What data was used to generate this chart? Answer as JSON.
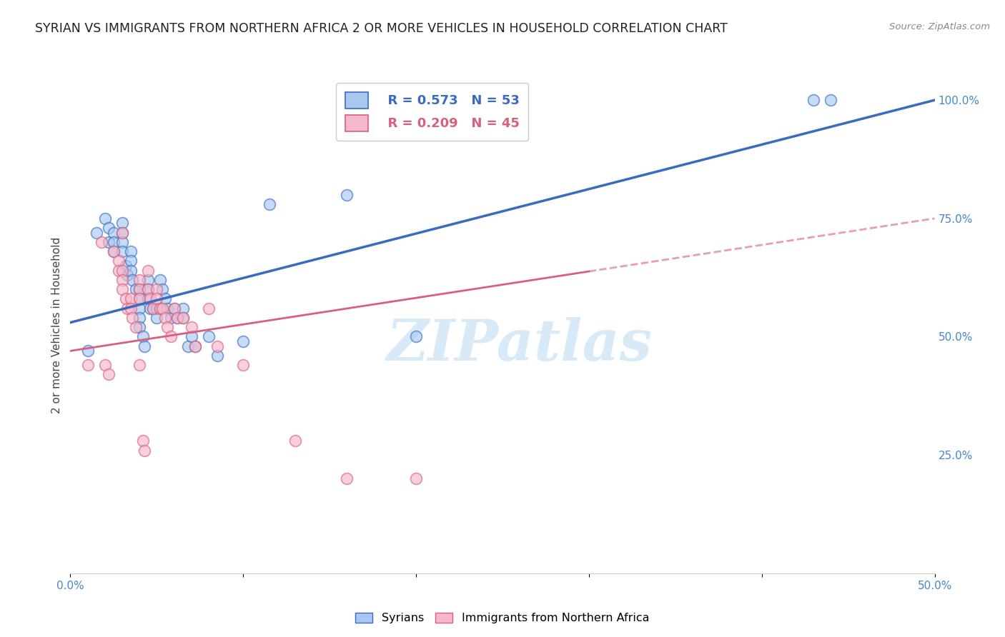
{
  "title": "SYRIAN VS IMMIGRANTS FROM NORTHERN AFRICA 2 OR MORE VEHICLES IN HOUSEHOLD CORRELATION CHART",
  "source": "Source: ZipAtlas.com",
  "ylabel": "2 or more Vehicles in Household",
  "xmin": 0.0,
  "xmax": 0.5,
  "ymin": 0.0,
  "ymax": 1.05,
  "xticks": [
    0.0,
    0.1,
    0.2,
    0.3,
    0.4,
    0.5
  ],
  "xticklabels": [
    "0.0%",
    "",
    "",
    "",
    "",
    "50.0%"
  ],
  "yticks_right": [
    0.25,
    0.5,
    0.75,
    1.0
  ],
  "yticklabels_right": [
    "25.0%",
    "50.0%",
    "75.0%",
    "100.0%"
  ],
  "blue_R": 0.573,
  "blue_N": 53,
  "pink_R": 0.209,
  "pink_N": 45,
  "blue_color": "#a8c8f0",
  "pink_color": "#f5b8cc",
  "blue_line_color": "#3a6bbf",
  "pink_line_color": "#d95f7a",
  "tick_color": "#4488cc",
  "watermark_text": "ZIPatlas",
  "watermark_color": "#d8eaf8",
  "blue_points": [
    [
      0.01,
      0.47
    ],
    [
      0.015,
      0.72
    ],
    [
      0.02,
      0.75
    ],
    [
      0.022,
      0.73
    ],
    [
      0.022,
      0.7
    ],
    [
      0.025,
      0.72
    ],
    [
      0.025,
      0.7
    ],
    [
      0.025,
      0.68
    ],
    [
      0.03,
      0.74
    ],
    [
      0.03,
      0.72
    ],
    [
      0.03,
      0.7
    ],
    [
      0.03,
      0.68
    ],
    [
      0.032,
      0.65
    ],
    [
      0.033,
      0.63
    ],
    [
      0.035,
      0.68
    ],
    [
      0.035,
      0.66
    ],
    [
      0.035,
      0.64
    ],
    [
      0.036,
      0.62
    ],
    [
      0.038,
      0.6
    ],
    [
      0.04,
      0.6
    ],
    [
      0.04,
      0.58
    ],
    [
      0.04,
      0.56
    ],
    [
      0.04,
      0.54
    ],
    [
      0.04,
      0.52
    ],
    [
      0.042,
      0.5
    ],
    [
      0.043,
      0.48
    ],
    [
      0.045,
      0.62
    ],
    [
      0.045,
      0.6
    ],
    [
      0.045,
      0.58
    ],
    [
      0.046,
      0.56
    ],
    [
      0.048,
      0.56
    ],
    [
      0.05,
      0.56
    ],
    [
      0.05,
      0.54
    ],
    [
      0.052,
      0.62
    ],
    [
      0.053,
      0.6
    ],
    [
      0.055,
      0.58
    ],
    [
      0.056,
      0.56
    ],
    [
      0.058,
      0.54
    ],
    [
      0.06,
      0.56
    ],
    [
      0.062,
      0.54
    ],
    [
      0.065,
      0.56
    ],
    [
      0.065,
      0.54
    ],
    [
      0.068,
      0.48
    ],
    [
      0.07,
      0.5
    ],
    [
      0.072,
      0.48
    ],
    [
      0.08,
      0.5
    ],
    [
      0.085,
      0.46
    ],
    [
      0.1,
      0.49
    ],
    [
      0.115,
      0.78
    ],
    [
      0.16,
      0.8
    ],
    [
      0.2,
      0.5
    ],
    [
      0.43,
      1.0
    ],
    [
      0.44,
      1.0
    ]
  ],
  "pink_points": [
    [
      0.01,
      0.44
    ],
    [
      0.018,
      0.7
    ],
    [
      0.02,
      0.44
    ],
    [
      0.022,
      0.42
    ],
    [
      0.025,
      0.68
    ],
    [
      0.028,
      0.66
    ],
    [
      0.028,
      0.64
    ],
    [
      0.03,
      0.72
    ],
    [
      0.03,
      0.64
    ],
    [
      0.03,
      0.62
    ],
    [
      0.03,
      0.6
    ],
    [
      0.032,
      0.58
    ],
    [
      0.033,
      0.56
    ],
    [
      0.035,
      0.58
    ],
    [
      0.035,
      0.56
    ],
    [
      0.036,
      0.54
    ],
    [
      0.038,
      0.52
    ],
    [
      0.04,
      0.62
    ],
    [
      0.04,
      0.6
    ],
    [
      0.04,
      0.58
    ],
    [
      0.04,
      0.44
    ],
    [
      0.042,
      0.28
    ],
    [
      0.043,
      0.26
    ],
    [
      0.045,
      0.64
    ],
    [
      0.045,
      0.6
    ],
    [
      0.046,
      0.58
    ],
    [
      0.048,
      0.56
    ],
    [
      0.05,
      0.6
    ],
    [
      0.05,
      0.58
    ],
    [
      0.052,
      0.56
    ],
    [
      0.053,
      0.56
    ],
    [
      0.055,
      0.54
    ],
    [
      0.056,
      0.52
    ],
    [
      0.058,
      0.5
    ],
    [
      0.06,
      0.56
    ],
    [
      0.062,
      0.54
    ],
    [
      0.065,
      0.54
    ],
    [
      0.07,
      0.52
    ],
    [
      0.072,
      0.48
    ],
    [
      0.08,
      0.56
    ],
    [
      0.085,
      0.48
    ],
    [
      0.1,
      0.44
    ],
    [
      0.13,
      0.28
    ],
    [
      0.16,
      0.2
    ],
    [
      0.2,
      0.2
    ]
  ]
}
